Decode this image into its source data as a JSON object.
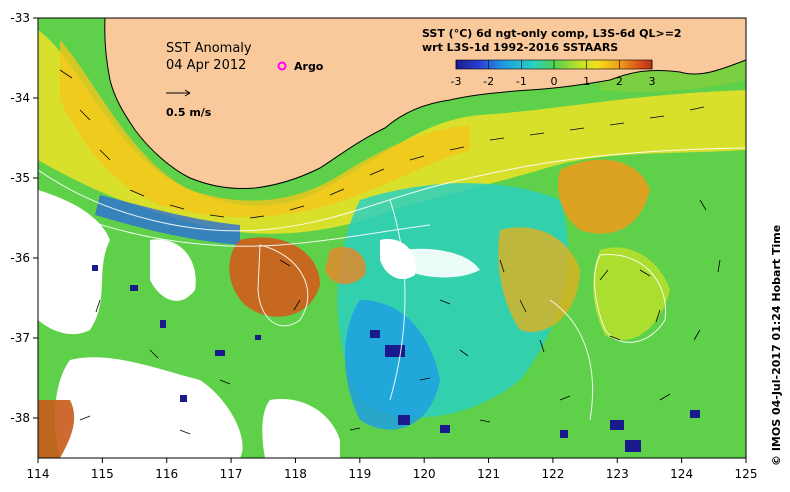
{
  "map": {
    "title_line1": "SST Anomaly",
    "title_line2": "04 Apr 2012",
    "argo_label": "Argo",
    "velocity_scale_label": "0.5 m/s",
    "product_line1": "SST (°C) 6d ngt-only comp, L3S-6d QL>=2",
    "product_line2": "wrt L3S-1d 1992-2016 SSTAARS",
    "credit": "© IMOS 04-Jul-2017 01:24 Hobart Time",
    "x_ticks": [
      "114",
      "115",
      "116",
      "117",
      "118",
      "119",
      "120",
      "121",
      "122",
      "123",
      "124",
      "125"
    ],
    "y_ticks": [
      "-33",
      "-34",
      "-35",
      "-36",
      "-37",
      "-38"
    ],
    "x_range": [
      114,
      125
    ],
    "y_range": [
      -38.5,
      -33
    ],
    "colorbar": {
      "ticks": [
        "-3",
        "-2",
        "-1",
        "0",
        "1",
        "2",
        "3"
      ],
      "range": [
        -3,
        3
      ],
      "colors": [
        "#1a1a8c",
        "#2b3fd6",
        "#1fa0e0",
        "#2bd0c0",
        "#4fd24f",
        "#b8e02a",
        "#f2e01a",
        "#f29a1a",
        "#d9561a",
        "#b8321a"
      ]
    },
    "colors": {
      "land": "#f9c99b",
      "no_data": "#ffffff",
      "argo_marker": "#ff00ff",
      "current_vectors": "#000000",
      "contours": "#ffffff"
    }
  }
}
